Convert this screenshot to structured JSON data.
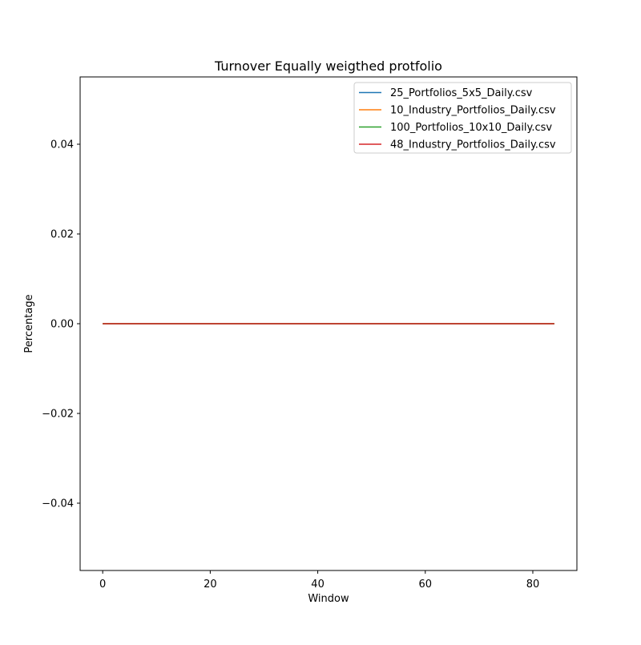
{
  "chart_data": {
    "type": "line",
    "title": "Turnover Equally weigthed protfolio",
    "xlabel": "Window",
    "ylabel": "Percentage",
    "xlim": [
      -4.2,
      88.2
    ],
    "ylim": [
      -0.055,
      0.055
    ],
    "xticks": [
      0,
      20,
      40,
      60,
      80
    ],
    "xtick_labels": [
      "0",
      "20",
      "40",
      "60",
      "80"
    ],
    "yticks": [
      -0.04,
      -0.02,
      0.0,
      0.02,
      0.04
    ],
    "ytick_labels": [
      "−0.04",
      "−0.02",
      "0.00",
      "0.02",
      "0.04"
    ],
    "grid": false,
    "legend_position": "top-right",
    "x": [
      0,
      84
    ],
    "series": [
      {
        "name": "25_Portfolios_5x5_Daily.csv",
        "color": "#1f77b4",
        "values": [
          0,
          0
        ]
      },
      {
        "name": "10_Industry_Portfolios_Daily.csv",
        "color": "#ff7f0e",
        "values": [
          0,
          0
        ]
      },
      {
        "name": "100_Portfolios_10x10_Daily.csv",
        "color": "#2ca02c",
        "values": [
          0,
          0
        ]
      },
      {
        "name": "48_Industry_Portfolios_Daily.csv",
        "color": "#d62728",
        "values": [
          0,
          0
        ]
      }
    ]
  }
}
